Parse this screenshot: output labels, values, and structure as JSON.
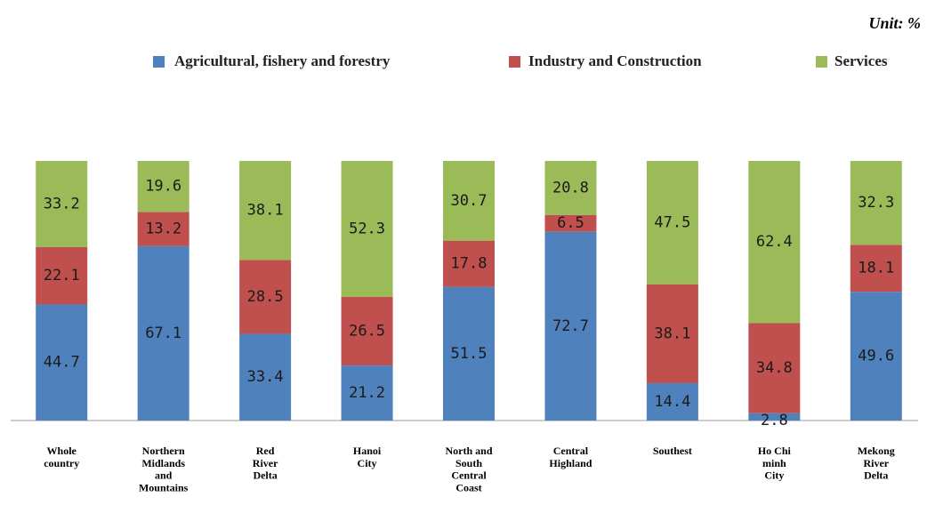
{
  "chart_data": {
    "type": "stacked-bar",
    "unit": "Unit: %",
    "categories": [
      "Whole\ncountry",
      "Northern\nMidlands\nand\nMountains",
      "Red\nRiver\nDelta",
      "Hanoi\nCity",
      "North and\nSouth\nCentral\nCoast",
      "Central\nHighland",
      "Southest",
      "Ho Chi\nminh\nCity",
      "Mekong\nRiver\nDelta"
    ],
    "series": [
      {
        "name": "Agricultural, fishery and forestry",
        "color": "#4f81bd",
        "values": [
          44.7,
          67.1,
          33.4,
          21.2,
          51.5,
          72.7,
          14.4,
          2.8,
          49.6
        ]
      },
      {
        "name": "Industry and Construction",
        "color": "#c0504d",
        "values": [
          22.1,
          13.2,
          28.5,
          26.5,
          17.8,
          6.5,
          38.1,
          34.8,
          18.1
        ]
      },
      {
        "name": "Services",
        "color": "#9bbb59",
        "values": [
          33.2,
          19.6,
          38.1,
          52.3,
          30.7,
          20.8,
          47.5,
          62.4,
          32.3
        ]
      }
    ]
  }
}
